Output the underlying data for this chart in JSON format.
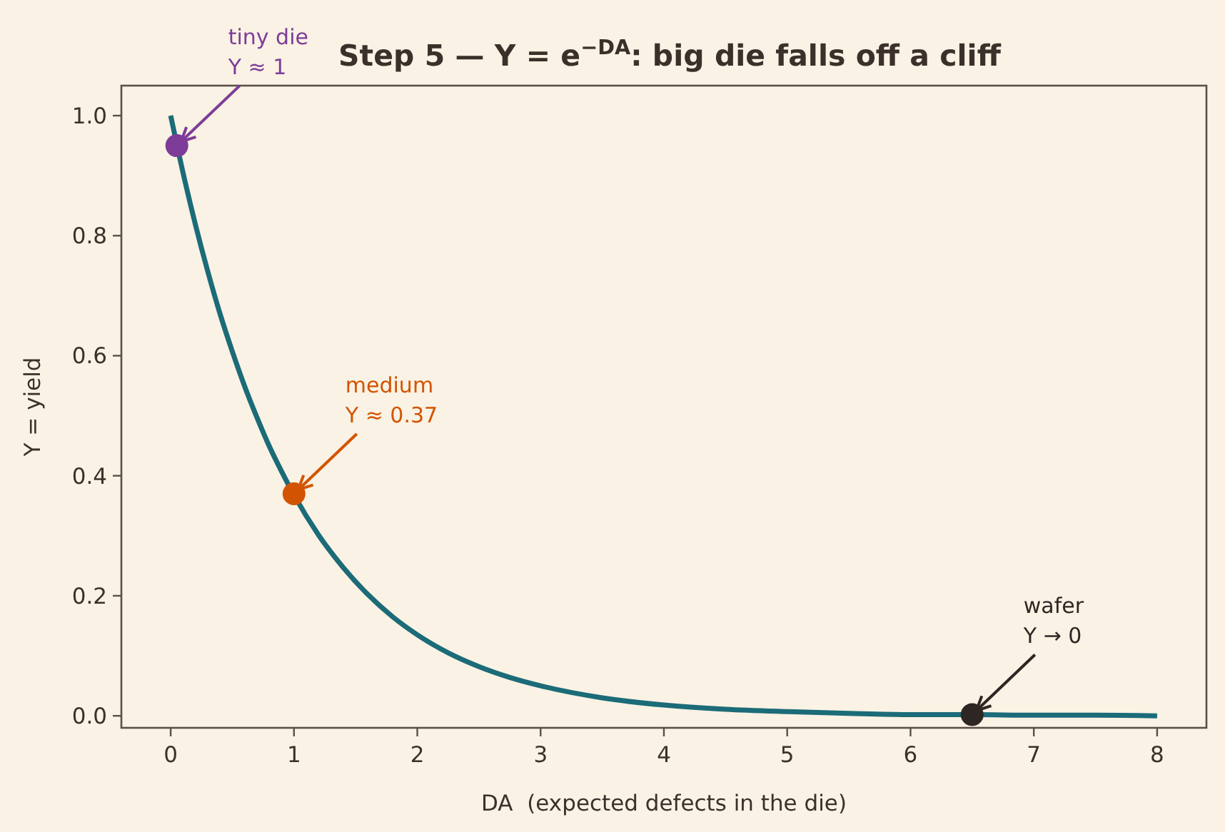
{
  "chart_data": {
    "type": "line",
    "title": "Step 5 — Y = e$^{−DA}$: big die falls off a cliff",
    "xlabel": "DA  (expected defects in the die)",
    "ylabel": "Y = yield",
    "xlim": [
      -0.4,
      8.4
    ],
    "ylim": [
      -0.02,
      1.05
    ],
    "xticks": [
      0,
      1,
      2,
      3,
      4,
      5,
      6,
      7,
      8
    ],
    "yticks": [
      {
        "value": 0,
        "label": "0.0"
      },
      0.2,
      0.4,
      0.6,
      0.8,
      {
        "value": 1,
        "label": "1.0"
      }
    ],
    "series": [
      {
        "color": "#1b6b78",
        "x": [
          0,
          0.1,
          0.2,
          0.3,
          0.4,
          0.5,
          0.6,
          0.7,
          0.8,
          0.9,
          1,
          1.2,
          1.4,
          1.6,
          1.8,
          2,
          2.25,
          2.5,
          2.75,
          3,
          3.5,
          4,
          4.5,
          5,
          5.5,
          6,
          6.5,
          7,
          7.5,
          8
        ],
        "values": [
          1,
          0.905,
          0.819,
          0.741,
          0.67,
          0.607,
          0.549,
          0.497,
          0.449,
          0.407,
          0.368,
          0.301,
          0.247,
          0.202,
          0.165,
          0.135,
          0.105,
          0.082,
          0.064,
          0.05,
          0.03,
          0.018,
          0.011,
          0.007,
          0.004,
          0.002,
          0.002,
          0.001,
          0.001,
          0
        ]
      },
      {
        "type": "scatter",
        "marker": "circle",
        "x": [
          0.05,
          1,
          6.5
        ],
        "values": [
          0.95,
          0.37,
          0.002
        ],
        "colors": [
          "#7d3c98",
          "#d35400",
          "#2e2622"
        ]
      }
    ],
    "annotations": [
      {
        "text": "tiny die\nY ≈ 1",
        "x": 0.05,
        "y": 0.95
      },
      {
        "text": "medium\nY ≈ 0.37",
        "x": 1,
        "y": 0.37
      },
      {
        "text": "wafer\nY → 0",
        "x": 6.5,
        "y": 0.002
      }
    ]
  }
}
